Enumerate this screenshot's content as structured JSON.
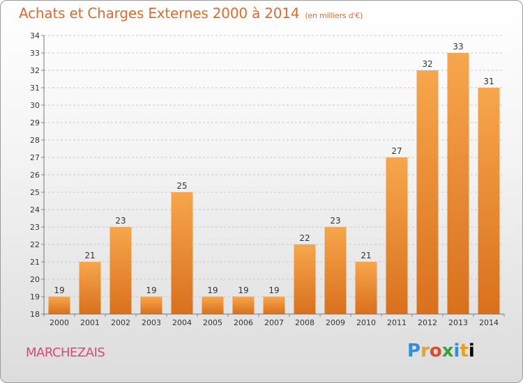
{
  "header": {
    "title": "Achats et Charges Externes 2000 à 2014",
    "subtitle": "(en milliers d'€)"
  },
  "footer": {
    "town": "MARCHEZAIS",
    "logo_letters": [
      "P",
      "r",
      "o",
      "x",
      "i",
      "t",
      "i"
    ]
  },
  "colors": {
    "bar_light": "#f7a64d",
    "bar_dark": "#d9701c",
    "title": "#e06a2c",
    "town": "#e0457a"
  },
  "chart_data": {
    "type": "bar",
    "title": "Achats et Charges Externes 2000 à 2014",
    "subtitle": "(en milliers d'€)",
    "categories": [
      "2000",
      "2001",
      "2002",
      "2003",
      "2004",
      "2005",
      "2006",
      "2007",
      "2008",
      "2009",
      "2010",
      "2011",
      "2012",
      "2013",
      "2014"
    ],
    "values": [
      19,
      21,
      23,
      19,
      25,
      19,
      19,
      19,
      22,
      23,
      21,
      27,
      32,
      33,
      31
    ],
    "ylim": [
      18,
      34
    ],
    "yticks": [
      18,
      19,
      20,
      21,
      22,
      23,
      24,
      25,
      26,
      27,
      28,
      29,
      30,
      31,
      32,
      33,
      34
    ],
    "grid": "horizontal dashed",
    "data_labels": true
  }
}
